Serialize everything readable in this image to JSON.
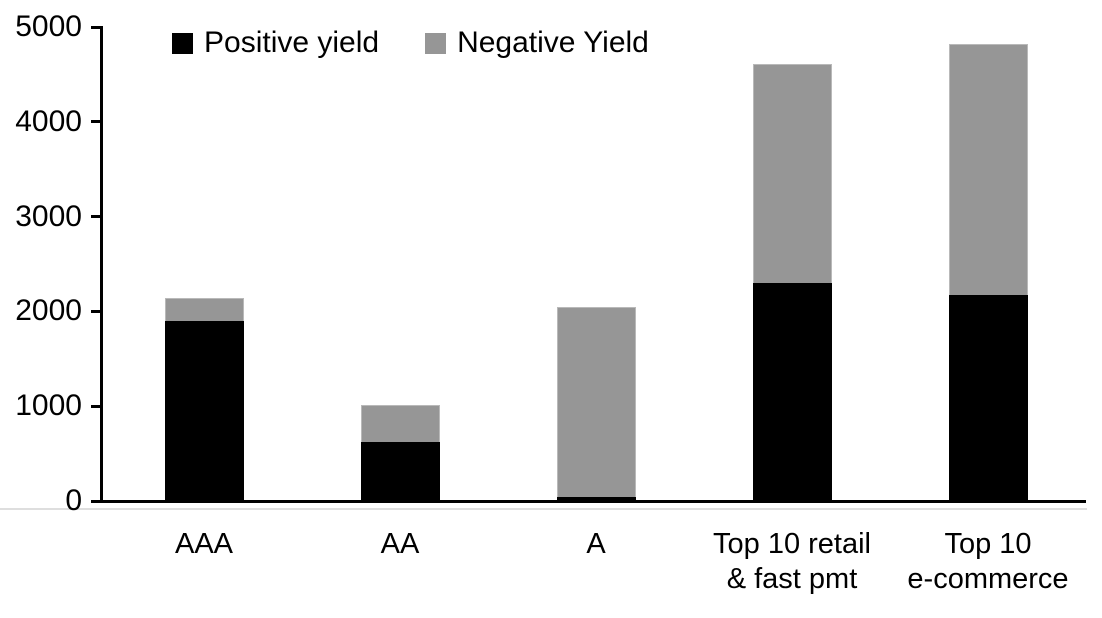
{
  "chart_data": {
    "type": "bar",
    "subtype": "stacked",
    "title": "",
    "xlabel": "",
    "ylabel": "",
    "categories": [
      "AAA",
      "AA",
      "A",
      "Top 10 retail\n& fast pmt",
      "Top 10\ne-commerce"
    ],
    "series": [
      {
        "name": "Positive yield",
        "color": "#000000",
        "values": [
          1900,
          620,
          40,
          2300,
          2170
        ]
      },
      {
        "name": "Negative Yield",
        "color": "#969696",
        "values": [
          240,
          390,
          2010,
          2310,
          2650
        ]
      }
    ],
    "stack_totals": [
      2140,
      1010,
      2050,
      4610,
      4820
    ],
    "ylim": [
      0,
      5000
    ],
    "yticks": [
      0,
      1000,
      2000,
      3000,
      4000,
      5000
    ],
    "ytick_labels": [
      "0",
      "1000",
      "2000",
      "3000",
      "4000",
      "5000"
    ],
    "legend_position": "top",
    "grid": false,
    "background": "#ffffff",
    "axis_color": "#000000"
  }
}
